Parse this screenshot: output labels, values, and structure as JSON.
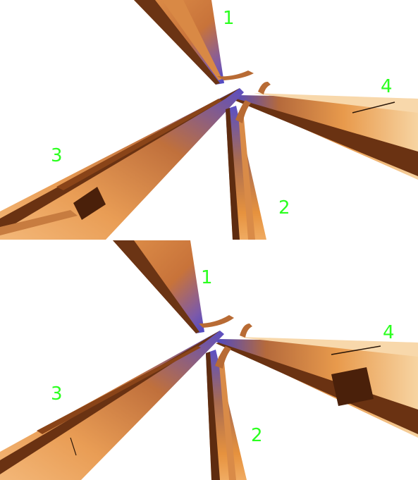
{
  "colors": {
    "label": "#2bff1f",
    "background": "#ffffff",
    "beam_light": "#f6c894",
    "beam_mid": "#e08a3a",
    "beam_dark": "#5a2a0e",
    "beam_tip": "#5a55c8"
  },
  "panels": [
    {
      "labels": [
        "1",
        "2",
        "3",
        "4"
      ]
    },
    {
      "labels": [
        "1",
        "2",
        "3",
        "4"
      ]
    }
  ]
}
